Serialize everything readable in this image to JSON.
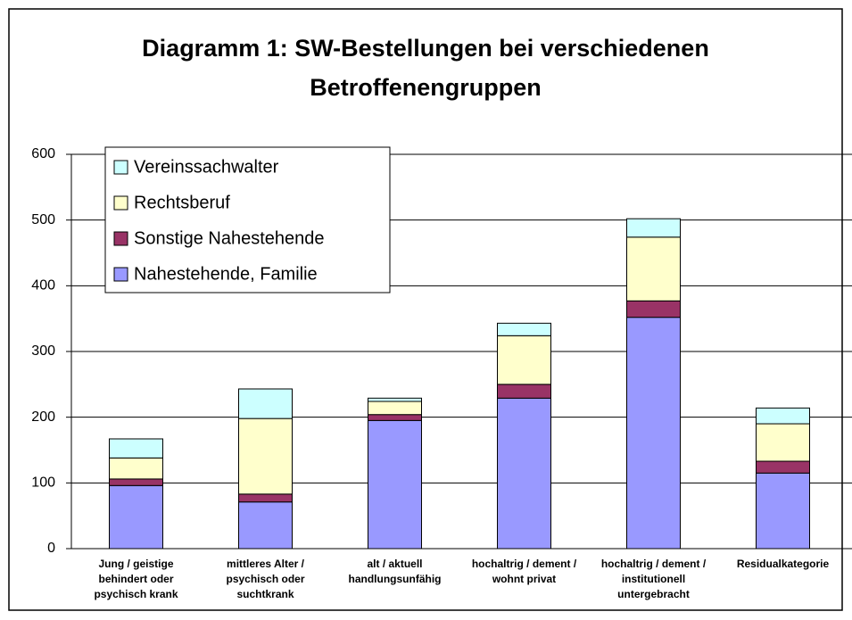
{
  "chart_data": {
    "type": "stacked-bar",
    "title": [
      "Diagramm 1: SW-Bestellungen bei verschiedenen",
      "Betroffenengruppen"
    ],
    "categories": [
      [
        "Jung / geistige",
        "behindert oder",
        "psychisch krank"
      ],
      [
        "mittleres Alter /",
        "psychisch oder",
        "suchtkrank"
      ],
      [
        "alt / aktuell",
        "handlungsunfähig"
      ],
      [
        "hochaltrig / dement /",
        "wohnt privat"
      ],
      [
        "hochaltrig / dement /",
        "institutionell",
        "untergebracht"
      ],
      [
        "Residualkategorie"
      ]
    ],
    "series": [
      {
        "name": "Nahestehende, Familie",
        "color": "#9999ff",
        "values": [
          96,
          71,
          195,
          229,
          352,
          115
        ]
      },
      {
        "name": "Sonstige Nahestehende",
        "color": "#993366",
        "values": [
          10,
          12,
          9,
          21,
          25,
          18
        ]
      },
      {
        "name": "Rechtsberuf",
        "color": "#ffffcc",
        "values": [
          32,
          115,
          20,
          74,
          97,
          57
        ]
      },
      {
        "name": "Vereinssachwalter",
        "color": "#ccffff",
        "values": [
          29,
          45,
          5,
          19,
          28,
          24
        ]
      }
    ],
    "ylim": [
      0,
      600
    ],
    "yticks": [
      0,
      100,
      200,
      300,
      400,
      500,
      600
    ],
    "grid": true,
    "legend": "upper-left"
  }
}
